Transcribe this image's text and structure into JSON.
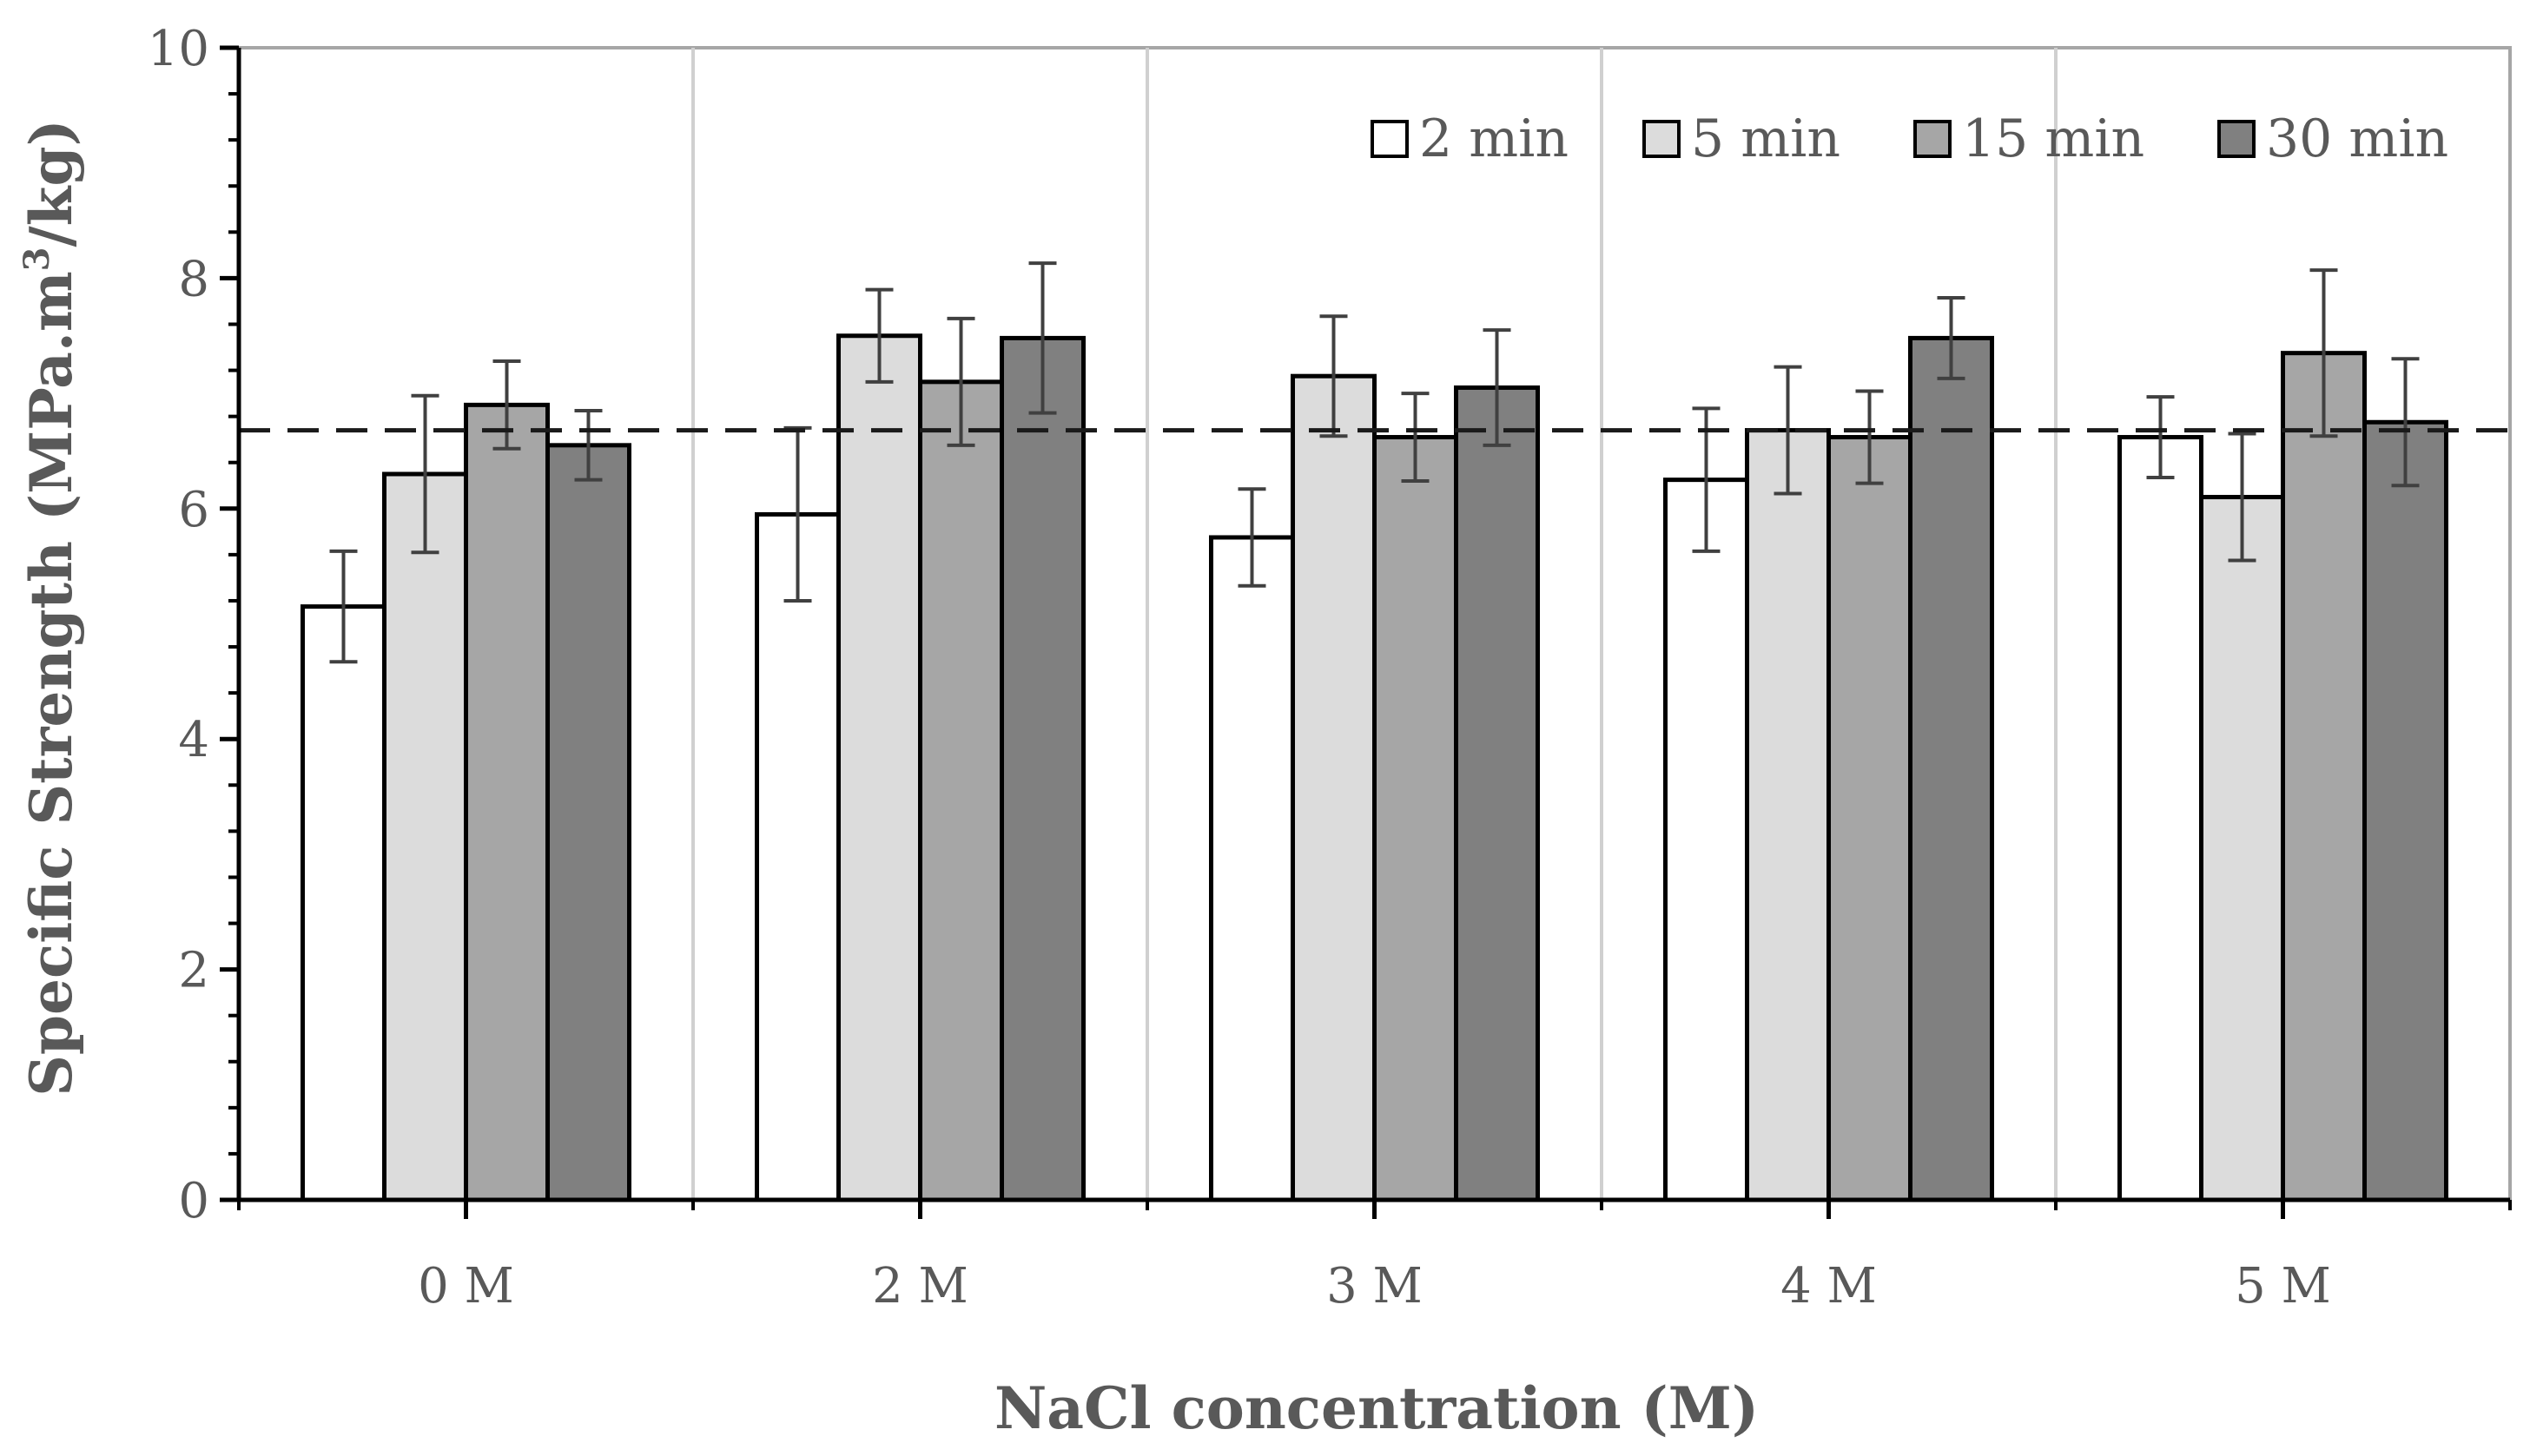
{
  "chart_data": {
    "type": "bar",
    "title": "",
    "xlabel": "NaCl concentration (M)",
    "ylabel_main": "Specific Strength (MPa.m",
    "ylabel_sup": "3",
    "ylabel_end": "/kg)",
    "ylim": [
      0,
      10
    ],
    "yticks": [
      0,
      2,
      4,
      6,
      8,
      10
    ],
    "categories": [
      "0 M",
      "2 M",
      "3 M",
      "4 M",
      "5 M"
    ],
    "reference_line": 6.68,
    "legend_position": "top-right",
    "series": [
      {
        "name": "2 min",
        "color": "#ffffff",
        "values": [
          5.15,
          5.95,
          5.75,
          6.25,
          6.62
        ],
        "errors": [
          0.48,
          0.75,
          0.42,
          0.62,
          0.35
        ]
      },
      {
        "name": "5 min",
        "color": "#dcdcdc",
        "values": [
          6.3,
          7.5,
          7.15,
          6.68,
          6.1
        ],
        "errors": [
          0.68,
          0.4,
          0.52,
          0.55,
          0.55
        ]
      },
      {
        "name": "15 min",
        "color": "#a6a6a6",
        "values": [
          6.9,
          7.1,
          6.62,
          6.62,
          7.35
        ],
        "errors": [
          0.38,
          0.55,
          0.38,
          0.4,
          0.72
        ]
      },
      {
        "name": "30 min",
        "color": "#808080",
        "values": [
          6.55,
          7.48,
          7.05,
          7.48,
          6.75
        ],
        "errors": [
          0.3,
          0.65,
          0.5,
          0.35,
          0.55
        ]
      }
    ]
  }
}
